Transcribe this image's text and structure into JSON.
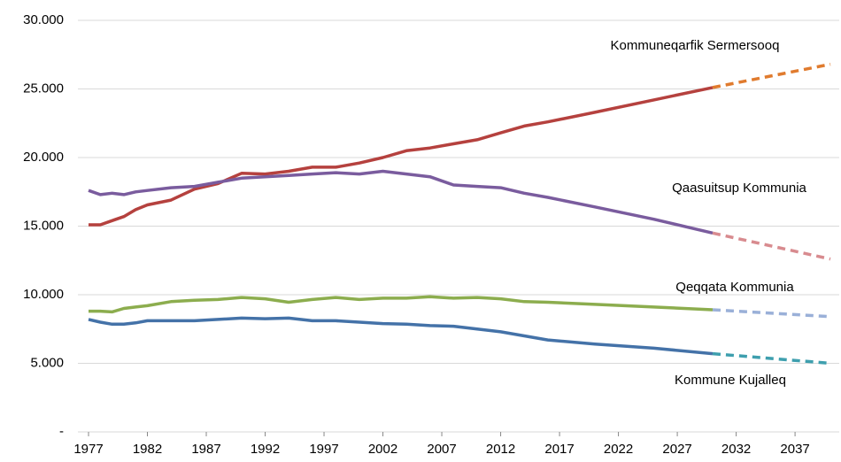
{
  "chart_data": {
    "type": "line",
    "x": [
      1977,
      1978,
      1979,
      1980,
      1981,
      1982,
      1984,
      1986,
      1988,
      1990,
      1992,
      1994,
      1996,
      1998,
      2000,
      2002,
      2004,
      2006,
      2008,
      2010,
      2012,
      2014,
      2016,
      2020,
      2025,
      2030,
      2040
    ],
    "projection_from": 2030,
    "series": [
      {
        "name": "Kommuneqarfik Sermersooq",
        "color": "#b5413e",
        "projection_color": "#e07b2e",
        "values": [
          15100,
          15100,
          15400,
          15700,
          16200,
          16550,
          16900,
          17700,
          18100,
          18850,
          18800,
          19000,
          19300,
          19300,
          19600,
          20000,
          20500,
          20700,
          21000,
          21300,
          21800,
          22300,
          22600,
          23300,
          24200,
          25100,
          26800
        ]
      },
      {
        "name": "Qaasuitsup Kommunia",
        "color": "#7a5c9e",
        "projection_color": "#d88b8f",
        "values": [
          17600,
          17300,
          17400,
          17300,
          17500,
          17600,
          17800,
          17900,
          18200,
          18500,
          18600,
          18700,
          18800,
          18900,
          18800,
          19000,
          18800,
          18600,
          18000,
          17900,
          17800,
          17400,
          17100,
          16400,
          15500,
          14500,
          12600
        ]
      },
      {
        "name": "Qeqqata Kommunia",
        "color": "#8cad4e",
        "projection_color": "#9ab0d8",
        "values": [
          8800,
          8800,
          8750,
          9000,
          9100,
          9200,
          9500,
          9600,
          9650,
          9800,
          9700,
          9450,
          9650,
          9800,
          9650,
          9750,
          9750,
          9850,
          9750,
          9800,
          9700,
          9500,
          9450,
          9300,
          9100,
          8900,
          8400
        ]
      },
      {
        "name": "Kommune Kujalleq",
        "color": "#4472a8",
        "projection_color": "#3e9fae",
        "values": [
          8200,
          8000,
          7850,
          7850,
          7950,
          8100,
          8100,
          8100,
          8200,
          8300,
          8250,
          8300,
          8100,
          8100,
          8000,
          7900,
          7850,
          7750,
          7700,
          7500,
          7300,
          7000,
          6700,
          6400,
          6100,
          5700,
          5000
        ]
      }
    ],
    "xlim": [
      1977,
      2040
    ],
    "xticks": [
      1977,
      1982,
      1987,
      1992,
      1997,
      2002,
      2007,
      2012,
      2017,
      2022,
      2027,
      2032,
      2037
    ],
    "ylim": [
      0,
      30000
    ],
    "yticks": [
      {
        "value": 0,
        "label": "-"
      },
      {
        "value": 5000,
        "label": "5.000"
      },
      {
        "value": 10000,
        "label": "10.000"
      },
      {
        "value": 15000,
        "label": "15.000"
      },
      {
        "value": 20000,
        "label": "20.000"
      },
      {
        "value": 25000,
        "label": "25.000"
      },
      {
        "value": 30000,
        "label": "30.000"
      }
    ],
    "grid": true
  }
}
